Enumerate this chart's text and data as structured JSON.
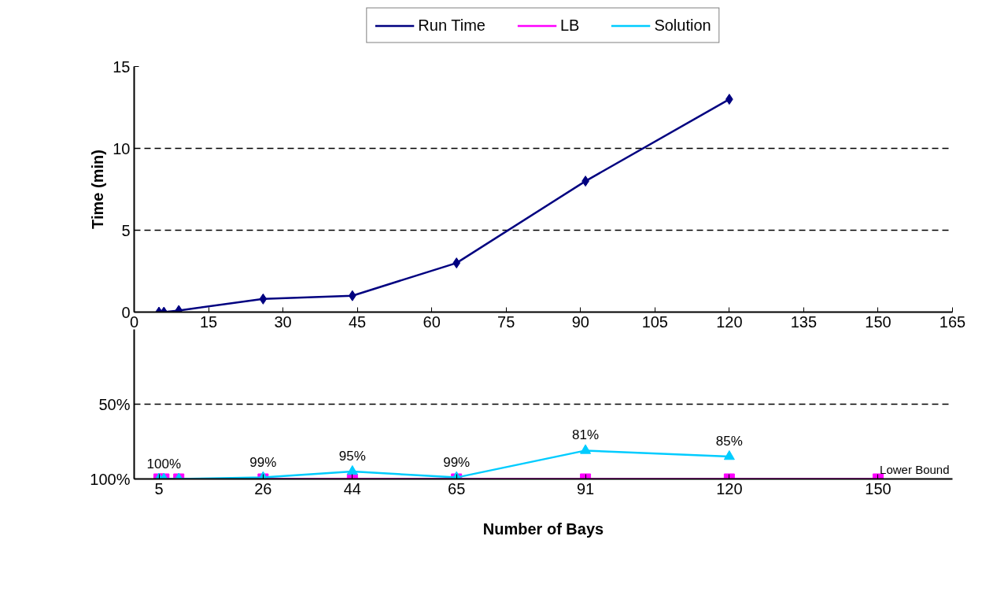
{
  "chart_data": [
    {
      "type": "line",
      "ylabel": "Time (min)",
      "xlim": [
        0,
        165
      ],
      "xticks": [
        0,
        15,
        30,
        45,
        60,
        75,
        90,
        105,
        120,
        135,
        150,
        165
      ],
      "ylim": [
        0,
        15
      ],
      "yticks": [
        0,
        5,
        10,
        15
      ],
      "grid": "y",
      "legend": "top",
      "series": [
        {
          "name": "Run Time",
          "color": "#000080",
          "marker": "diamond",
          "x": [
            5,
            6,
            9,
            26,
            44,
            65,
            91,
            120
          ],
          "values": [
            0,
            0,
            0.1,
            0.8,
            1,
            3,
            8,
            13
          ]
        }
      ]
    },
    {
      "type": "line",
      "xlabel": "Number of Bays",
      "xlim": [
        0,
        165
      ],
      "xticks": [
        5,
        26,
        44,
        65,
        91,
        120,
        150
      ],
      "ylim": [
        100,
        0
      ],
      "yticks": [
        {
          "value": 50,
          "label": "50%"
        },
        {
          "value": 100,
          "label": "100%"
        }
      ],
      "grid": "y",
      "legend": "top",
      "annotations": [
        "Lower Bound"
      ],
      "series": [
        {
          "name": "LB",
          "color": "#ff00ff",
          "marker": "square",
          "x": [
            5,
            6,
            9,
            26,
            44,
            65,
            91,
            120,
            150
          ],
          "values": [
            100,
            100,
            100,
            100,
            100,
            100,
            100,
            100,
            100
          ]
        },
        {
          "name": "Solution",
          "color": "#00ccff",
          "marker": "triangle",
          "x": [
            5,
            6,
            9,
            26,
            44,
            65,
            91,
            120
          ],
          "values": [
            100,
            100,
            100,
            99,
            95,
            99,
            81,
            85
          ],
          "value_labels": [
            null,
            "100%",
            null,
            "99%",
            "95%",
            "99%",
            "81%",
            "85%"
          ]
        }
      ]
    }
  ]
}
